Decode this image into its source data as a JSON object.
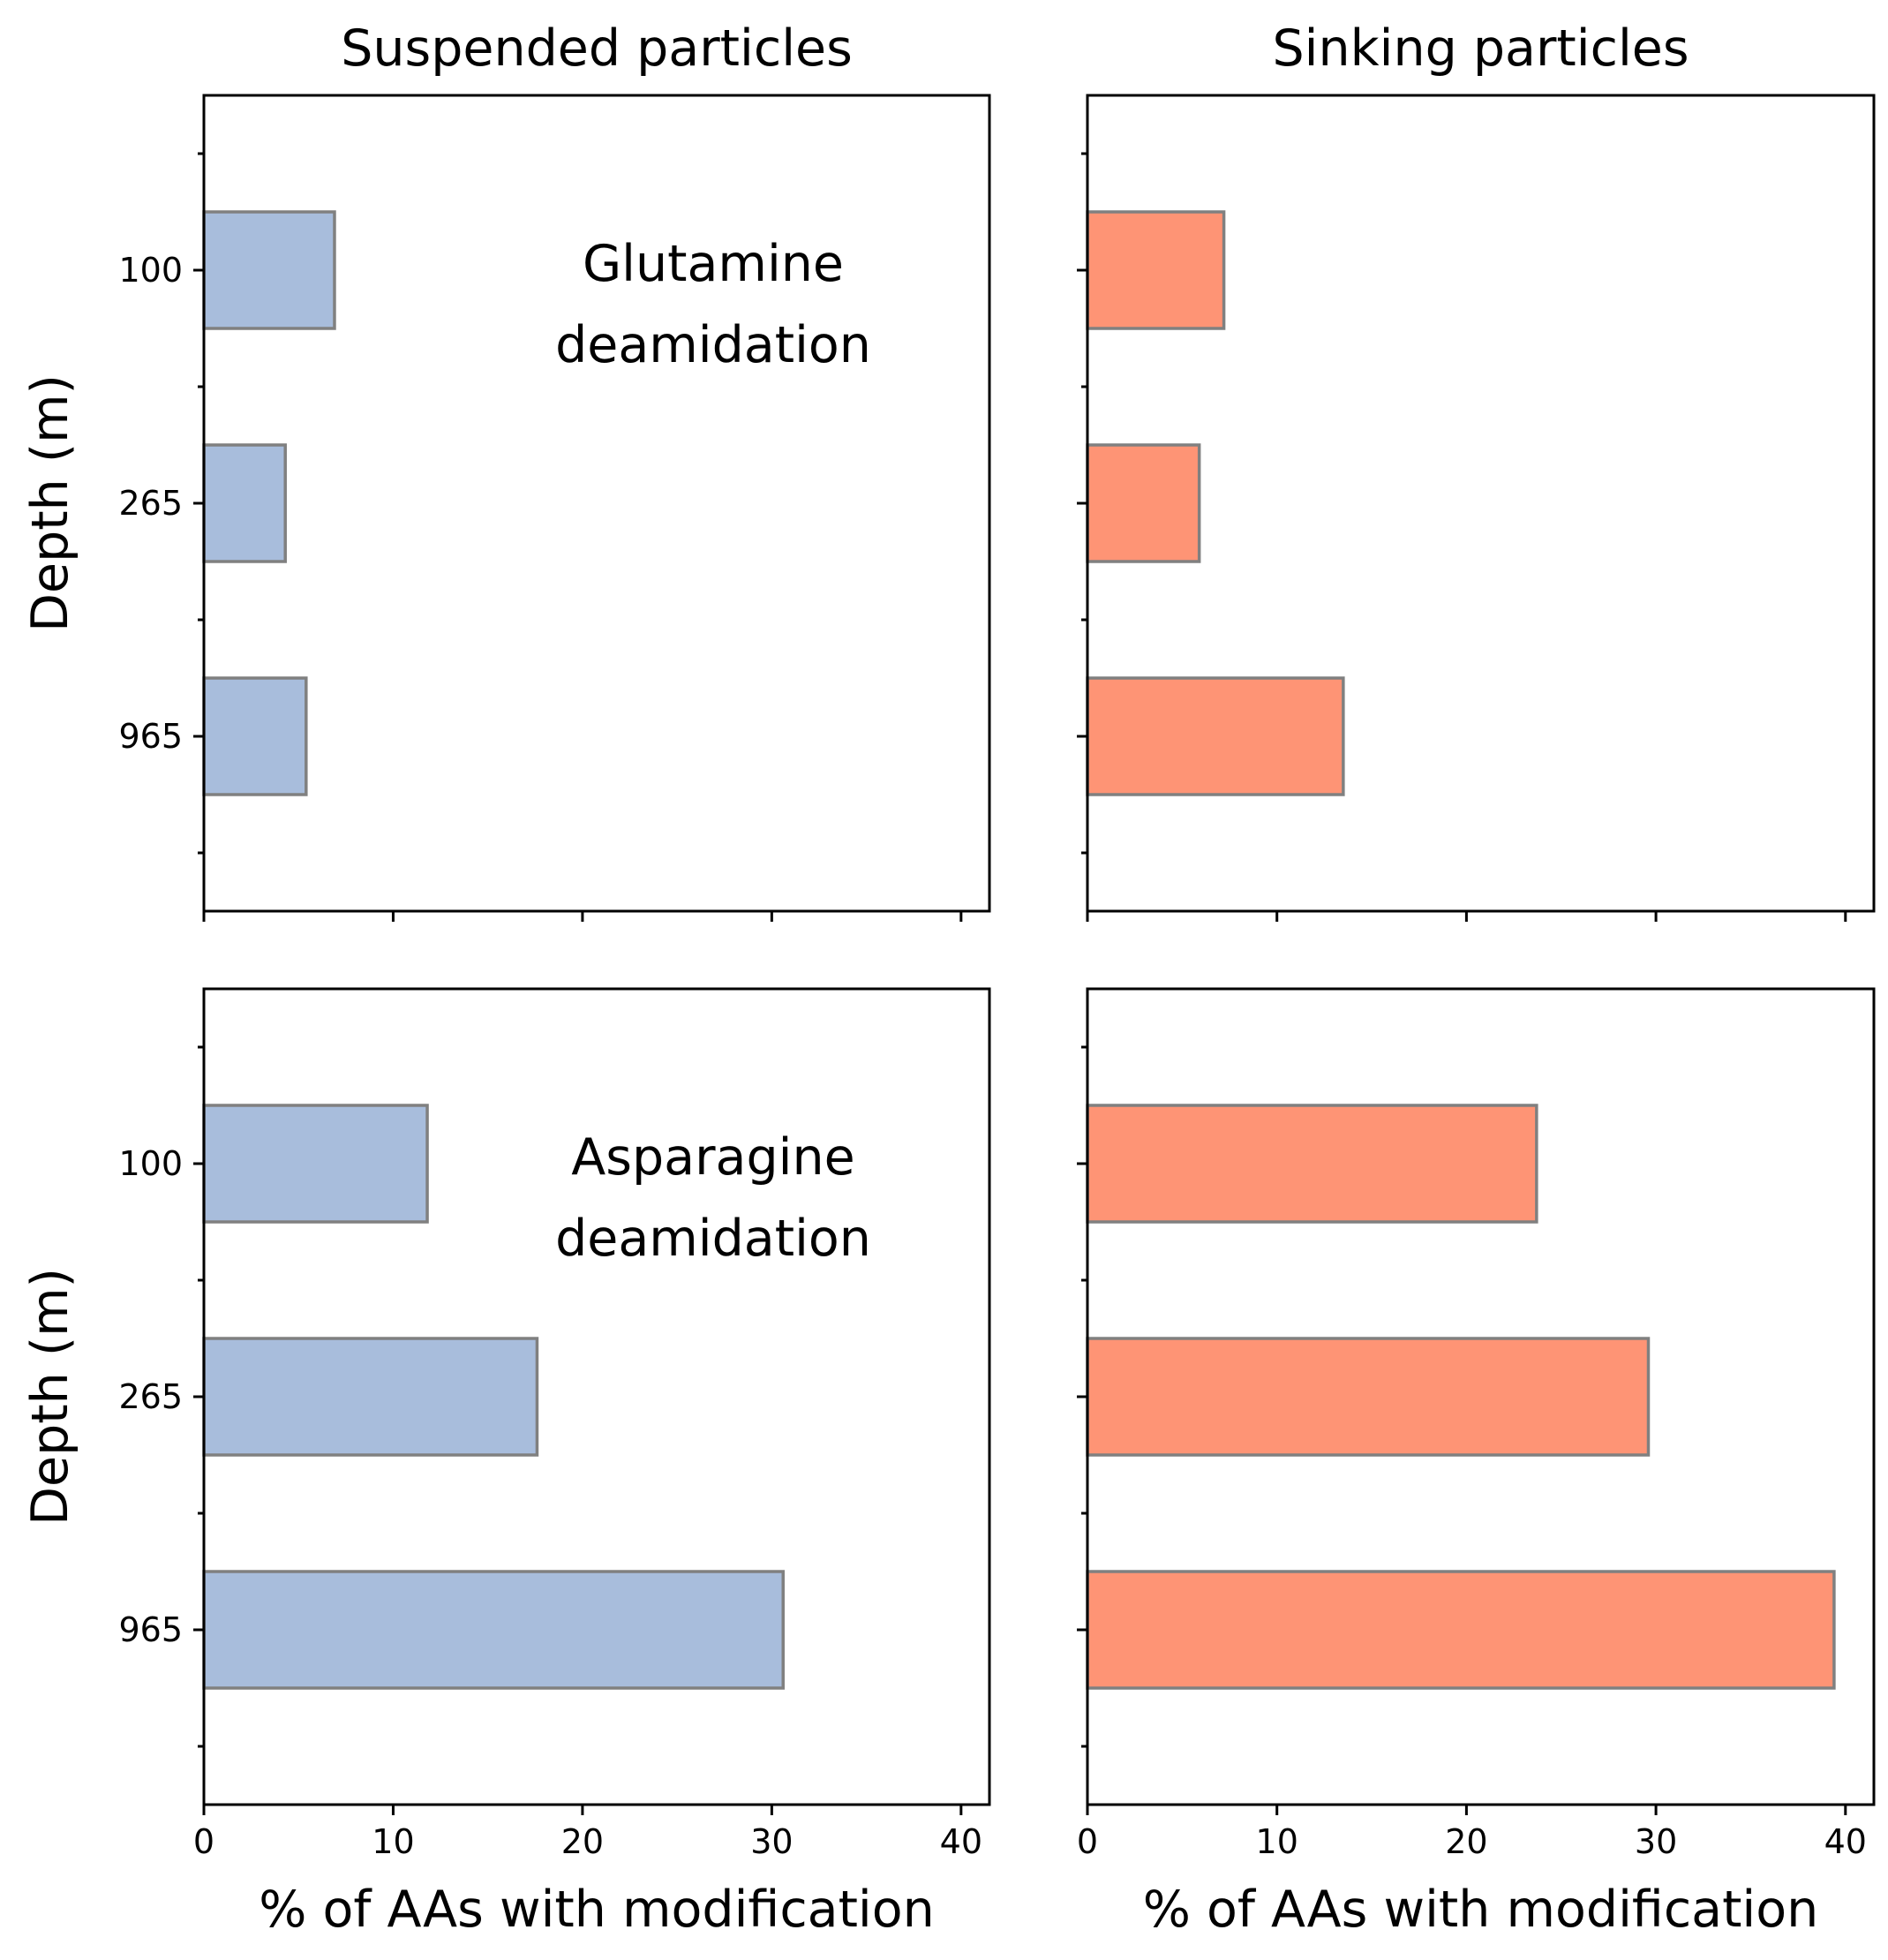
{
  "colors": {
    "suspended": "#a8bddc",
    "sinking": "#fe9475",
    "bar_edge": "#808080"
  },
  "axis_label_x": "% of AAs with modification",
  "axis_label_y": "Depth (m)",
  "chart_data": [
    {
      "type": "bar",
      "orientation": "horizontal",
      "panel": "top-left",
      "title": "Suspended particles",
      "annotation": [
        "Glutamine",
        "deamidation"
      ],
      "categories": [
        "100",
        "265",
        "965"
      ],
      "values": [
        6.9,
        4.3,
        5.4
      ],
      "color": "#a8bddc",
      "xlabel": "",
      "ylabel": "Depth (m)",
      "xlim": [
        0,
        41.5
      ],
      "xticks": [
        0,
        10,
        20,
        30,
        40
      ],
      "xticklabels": [],
      "yticklabels": [
        "100",
        "265",
        "965"
      ]
    },
    {
      "type": "bar",
      "orientation": "horizontal",
      "panel": "top-right",
      "title": "Sinking particles",
      "annotation": [],
      "categories": [
        "100",
        "265",
        "965"
      ],
      "values": [
        7.2,
        5.9,
        13.5
      ],
      "color": "#fe9475",
      "xlabel": "",
      "ylabel": "",
      "xlim": [
        0,
        41.5
      ],
      "xticks": [
        0,
        10,
        20,
        30,
        40
      ],
      "xticklabels": [],
      "yticklabels": []
    },
    {
      "type": "bar",
      "orientation": "horizontal",
      "panel": "bottom-left",
      "title": "",
      "annotation": [
        "Asparagine",
        "deamidation"
      ],
      "categories": [
        "100",
        "265",
        "965"
      ],
      "values": [
        11.8,
        17.6,
        30.6
      ],
      "color": "#a8bddc",
      "xlabel": "% of AAs with modification",
      "ylabel": "Depth (m)",
      "xlim": [
        0,
        41.5
      ],
      "xticks": [
        0,
        10,
        20,
        30,
        40
      ],
      "xticklabels": [
        "0",
        "10",
        "20",
        "30",
        "40"
      ],
      "yticklabels": [
        "100",
        "265",
        "965"
      ]
    },
    {
      "type": "bar",
      "orientation": "horizontal",
      "panel": "bottom-right",
      "title": "",
      "annotation": [],
      "categories": [
        "100",
        "265",
        "965"
      ],
      "values": [
        23.7,
        29.6,
        39.4
      ],
      "color": "#fe9475",
      "xlabel": "% of AAs with modification",
      "ylabel": "",
      "xlim": [
        0,
        41.5
      ],
      "xticks": [
        0,
        10,
        20,
        30,
        40
      ],
      "xticklabels": [
        "0",
        "10",
        "20",
        "30",
        "40"
      ],
      "yticklabels": []
    }
  ]
}
